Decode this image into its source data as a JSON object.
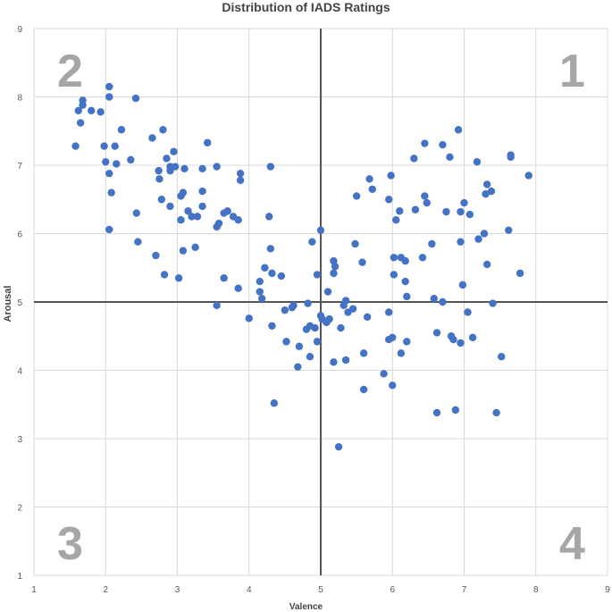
{
  "chart_data": {
    "type": "scatter",
    "title": "Distribution of IADS Ratings",
    "xlabel": "Valence",
    "ylabel": "Arousal",
    "xlim": [
      1,
      9
    ],
    "ylim": [
      1,
      9
    ],
    "xticks": [
      "1",
      "2",
      "3",
      "4",
      "5",
      "6",
      "7",
      "8",
      "9"
    ],
    "yticks": [
      "1",
      "2",
      "3",
      "4",
      "5",
      "6",
      "7",
      "8",
      "9"
    ],
    "grid": true,
    "reference_lines": {
      "x": 5,
      "y": 5
    },
    "quadrant_labels": [
      "1",
      "2",
      "3",
      "4"
    ],
    "marker_color": "#4472c4",
    "points": [
      {
        "x": 1.58,
        "y": 7.28
      },
      {
        "x": 1.62,
        "y": 7.8
      },
      {
        "x": 1.65,
        "y": 7.62
      },
      {
        "x": 1.68,
        "y": 7.88
      },
      {
        "x": 1.68,
        "y": 7.95
      },
      {
        "x": 1.8,
        "y": 7.8
      },
      {
        "x": 1.93,
        "y": 7.78
      },
      {
        "x": 2.05,
        "y": 8.0
      },
      {
        "x": 2.05,
        "y": 8.15
      },
      {
        "x": 2.42,
        "y": 7.98
      },
      {
        "x": 1.98,
        "y": 7.28
      },
      {
        "x": 2.0,
        "y": 7.05
      },
      {
        "x": 2.05,
        "y": 6.88
      },
      {
        "x": 2.13,
        "y": 7.28
      },
      {
        "x": 2.15,
        "y": 7.02
      },
      {
        "x": 2.22,
        "y": 7.52
      },
      {
        "x": 2.35,
        "y": 7.08
      },
      {
        "x": 2.08,
        "y": 6.6
      },
      {
        "x": 2.05,
        "y": 6.06
      },
      {
        "x": 2.43,
        "y": 6.3
      },
      {
        "x": 2.45,
        "y": 5.88
      },
      {
        "x": 2.65,
        "y": 7.4
      },
      {
        "x": 2.8,
        "y": 7.52
      },
      {
        "x": 2.85,
        "y": 7.1
      },
      {
        "x": 2.74,
        "y": 6.92
      },
      {
        "x": 2.75,
        "y": 6.8
      },
      {
        "x": 2.9,
        "y": 6.98
      },
      {
        "x": 2.9,
        "y": 6.92
      },
      {
        "x": 2.95,
        "y": 7.2
      },
      {
        "x": 2.97,
        "y": 6.98
      },
      {
        "x": 3.1,
        "y": 6.95
      },
      {
        "x": 2.78,
        "y": 6.5
      },
      {
        "x": 2.9,
        "y": 6.4
      },
      {
        "x": 3.05,
        "y": 6.55
      },
      {
        "x": 3.08,
        "y": 6.6
      },
      {
        "x": 3.05,
        "y": 6.2
      },
      {
        "x": 3.15,
        "y": 6.33
      },
      {
        "x": 3.2,
        "y": 6.25
      },
      {
        "x": 3.28,
        "y": 6.25
      },
      {
        "x": 3.35,
        "y": 6.4
      },
      {
        "x": 3.35,
        "y": 6.95
      },
      {
        "x": 3.35,
        "y": 6.62
      },
      {
        "x": 3.42,
        "y": 7.33
      },
      {
        "x": 3.55,
        "y": 6.98
      },
      {
        "x": 2.7,
        "y": 5.68
      },
      {
        "x": 2.82,
        "y": 5.4
      },
      {
        "x": 3.02,
        "y": 5.35
      },
      {
        "x": 3.08,
        "y": 5.75
      },
      {
        "x": 3.25,
        "y": 5.8
      },
      {
        "x": 3.55,
        "y": 6.1
      },
      {
        "x": 3.55,
        "y": 4.95
      },
      {
        "x": 3.58,
        "y": 6.15
      },
      {
        "x": 3.65,
        "y": 6.3
      },
      {
        "x": 3.65,
        "y": 5.35
      },
      {
        "x": 3.7,
        "y": 6.33
      },
      {
        "x": 3.78,
        "y": 6.25
      },
      {
        "x": 3.85,
        "y": 6.2
      },
      {
        "x": 3.88,
        "y": 6.88
      },
      {
        "x": 3.88,
        "y": 6.78
      },
      {
        "x": 3.85,
        "y": 5.2
      },
      {
        "x": 4.0,
        "y": 4.76
      },
      {
        "x": 4.15,
        "y": 5.3
      },
      {
        "x": 4.15,
        "y": 5.15
      },
      {
        "x": 4.18,
        "y": 5.05
      },
      {
        "x": 4.22,
        "y": 5.5
      },
      {
        "x": 4.28,
        "y": 6.25
      },
      {
        "x": 4.3,
        "y": 6.98
      },
      {
        "x": 4.3,
        "y": 5.78
      },
      {
        "x": 4.32,
        "y": 5.42
      },
      {
        "x": 4.32,
        "y": 4.65
      },
      {
        "x": 4.35,
        "y": 3.52
      },
      {
        "x": 4.45,
        "y": 5.38
      },
      {
        "x": 4.5,
        "y": 4.88
      },
      {
        "x": 4.52,
        "y": 4.42
      },
      {
        "x": 4.6,
        "y": 4.92
      },
      {
        "x": 4.62,
        "y": 4.95
      },
      {
        "x": 4.68,
        "y": 4.05
      },
      {
        "x": 4.7,
        "y": 4.35
      },
      {
        "x": 4.8,
        "y": 4.6
      },
      {
        "x": 4.82,
        "y": 4.98
      },
      {
        "x": 4.85,
        "y": 4.65
      },
      {
        "x": 4.85,
        "y": 4.2
      },
      {
        "x": 4.88,
        "y": 5.88
      },
      {
        "x": 4.92,
        "y": 4.62
      },
      {
        "x": 4.95,
        "y": 5.4
      },
      {
        "x": 4.95,
        "y": 4.42
      },
      {
        "x": 5.0,
        "y": 6.05
      },
      {
        "x": 5.0,
        "y": 4.8
      },
      {
        "x": 5.02,
        "y": 4.75
      },
      {
        "x": 5.08,
        "y": 4.7
      },
      {
        "x": 5.1,
        "y": 5.15
      },
      {
        "x": 5.12,
        "y": 4.75
      },
      {
        "x": 5.18,
        "y": 5.6
      },
      {
        "x": 5.18,
        "y": 5.42
      },
      {
        "x": 5.2,
        "y": 5.52
      },
      {
        "x": 5.18,
        "y": 4.12
      },
      {
        "x": 5.25,
        "y": 2.88
      },
      {
        "x": 5.28,
        "y": 4.62
      },
      {
        "x": 5.32,
        "y": 4.95
      },
      {
        "x": 5.35,
        "y": 5.02
      },
      {
        "x": 5.35,
        "y": 4.15
      },
      {
        "x": 5.38,
        "y": 4.85
      },
      {
        "x": 5.45,
        "y": 4.9
      },
      {
        "x": 5.48,
        "y": 5.85
      },
      {
        "x": 5.5,
        "y": 6.55
      },
      {
        "x": 5.58,
        "y": 5.58
      },
      {
        "x": 5.6,
        "y": 4.25
      },
      {
        "x": 5.6,
        "y": 3.72
      },
      {
        "x": 5.65,
        "y": 4.78
      },
      {
        "x": 5.68,
        "y": 6.8
      },
      {
        "x": 5.72,
        "y": 6.65
      },
      {
        "x": 5.88,
        "y": 3.95
      },
      {
        "x": 5.95,
        "y": 6.5
      },
      {
        "x": 5.98,
        "y": 6.85
      },
      {
        "x": 5.95,
        "y": 4.85
      },
      {
        "x": 5.95,
        "y": 4.45
      },
      {
        "x": 6.0,
        "y": 4.48
      },
      {
        "x": 6.0,
        "y": 3.78
      },
      {
        "x": 6.02,
        "y": 5.65
      },
      {
        "x": 6.02,
        "y": 5.4
      },
      {
        "x": 6.05,
        "y": 6.2
      },
      {
        "x": 6.1,
        "y": 6.33
      },
      {
        "x": 6.12,
        "y": 5.65
      },
      {
        "x": 6.12,
        "y": 4.25
      },
      {
        "x": 6.18,
        "y": 5.3
      },
      {
        "x": 6.18,
        "y": 5.6
      },
      {
        "x": 6.2,
        "y": 5.08
      },
      {
        "x": 6.2,
        "y": 4.42
      },
      {
        "x": 6.3,
        "y": 7.1
      },
      {
        "x": 6.32,
        "y": 6.35
      },
      {
        "x": 6.42,
        "y": 5.65
      },
      {
        "x": 6.45,
        "y": 7.32
      },
      {
        "x": 6.45,
        "y": 6.55
      },
      {
        "x": 6.48,
        "y": 6.45
      },
      {
        "x": 6.55,
        "y": 5.85
      },
      {
        "x": 6.58,
        "y": 5.05
      },
      {
        "x": 6.62,
        "y": 4.55
      },
      {
        "x": 6.62,
        "y": 3.38
      },
      {
        "x": 6.7,
        "y": 7.3
      },
      {
        "x": 6.7,
        "y": 5.0
      },
      {
        "x": 6.75,
        "y": 6.32
      },
      {
        "x": 6.8,
        "y": 7.12
      },
      {
        "x": 6.82,
        "y": 4.5
      },
      {
        "x": 6.85,
        "y": 4.45
      },
      {
        "x": 6.88,
        "y": 3.42
      },
      {
        "x": 6.92,
        "y": 7.52
      },
      {
        "x": 6.95,
        "y": 6.32
      },
      {
        "x": 6.95,
        "y": 5.88
      },
      {
        "x": 6.95,
        "y": 4.4
      },
      {
        "x": 6.98,
        "y": 5.25
      },
      {
        "x": 7.0,
        "y": 6.45
      },
      {
        "x": 7.05,
        "y": 4.85
      },
      {
        "x": 7.08,
        "y": 6.28
      },
      {
        "x": 7.12,
        "y": 4.48
      },
      {
        "x": 7.18,
        "y": 7.05
      },
      {
        "x": 7.2,
        "y": 5.92
      },
      {
        "x": 7.28,
        "y": 6.0
      },
      {
        "x": 7.3,
        "y": 6.58
      },
      {
        "x": 7.32,
        "y": 6.72
      },
      {
        "x": 7.32,
        "y": 5.55
      },
      {
        "x": 7.38,
        "y": 6.62
      },
      {
        "x": 7.4,
        "y": 4.98
      },
      {
        "x": 7.45,
        "y": 3.38
      },
      {
        "x": 7.52,
        "y": 4.2
      },
      {
        "x": 7.62,
        "y": 6.05
      },
      {
        "x": 7.65,
        "y": 7.12
      },
      {
        "x": 7.65,
        "y": 7.15
      },
      {
        "x": 7.78,
        "y": 5.42
      },
      {
        "x": 7.9,
        "y": 6.85
      }
    ]
  }
}
